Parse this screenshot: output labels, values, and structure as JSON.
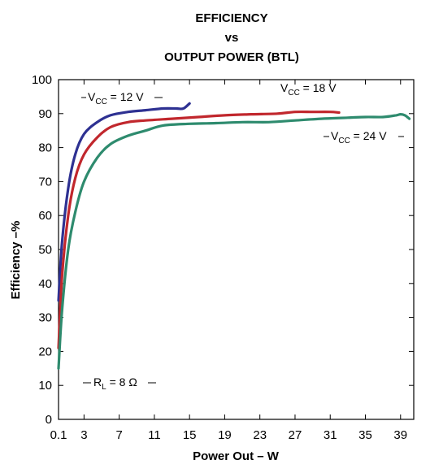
{
  "chart_data": {
    "type": "line",
    "title_lines": [
      "EFFICIENCY",
      "vs",
      "OUTPUT POWER (BTL)"
    ],
    "xlabel": "Power Out – W",
    "ylabel": "Efficiency –%",
    "xlim": [
      0.1,
      40.5
    ],
    "ylim": [
      0,
      100
    ],
    "x_ticks": [
      0.1,
      3,
      7,
      11,
      15,
      19,
      23,
      27,
      31,
      35,
      39
    ],
    "x_tick_labels": [
      "0.1",
      "3",
      "7",
      "11",
      "15",
      "19",
      "23",
      "27",
      "31",
      "35",
      "39"
    ],
    "y_ticks": [
      0,
      10,
      20,
      30,
      40,
      50,
      60,
      70,
      80,
      90,
      100
    ],
    "y_tick_labels": [
      "0",
      "10",
      "20",
      "30",
      "40",
      "50",
      "60",
      "70",
      "80",
      "90",
      "100"
    ],
    "grid": false,
    "series": [
      {
        "color": "#2e3192",
        "x": [
          0.1,
          0.5,
          1.2,
          2.0,
          3.0,
          4.5,
          6.0,
          8.0,
          10.0,
          12.0,
          13.5,
          14.3,
          15.0
        ],
        "y": [
          35,
          52,
          68,
          78,
          84,
          87.5,
          89.5,
          90.5,
          91,
          91.5,
          91.5,
          91.5,
          93
        ]
      },
      {
        "color": "#c1272d",
        "x": [
          0.1,
          0.5,
          1.2,
          2.0,
          3.0,
          4.5,
          6.0,
          8.0,
          10.0,
          13.0,
          16.0,
          19.0,
          22.0,
          25.0,
          27.0,
          29.0,
          31.0,
          32.0
        ],
        "y": [
          21,
          42,
          60,
          71,
          78,
          83,
          86,
          87.5,
          88,
          88.5,
          89,
          89.5,
          89.8,
          90,
          90.5,
          90.5,
          90.5,
          90.3
        ]
      },
      {
        "color": "#2e8b6e",
        "x": [
          0.1,
          0.5,
          1.2,
          2.0,
          3.0,
          4.5,
          6.0,
          8.0,
          10.0,
          12.0,
          15.0,
          18.0,
          21.0,
          24.0,
          27.0,
          30.0,
          33.0,
          35.0,
          37.0,
          38.5,
          39.0,
          39.5,
          40.0
        ],
        "y": [
          15,
          32,
          50,
          61,
          70,
          77,
          81,
          83.5,
          85,
          86.5,
          87,
          87.2,
          87.5,
          87.5,
          88,
          88.5,
          88.8,
          89,
          89,
          89.5,
          89.8,
          89.5,
          88.5
        ]
      }
    ],
    "annotations": [
      {
        "main": "V",
        "sub": "CC",
        "rest": " = 12 V"
      },
      {
        "main": "V",
        "sub": "CC",
        "rest": " = 18 V"
      },
      {
        "main": "V",
        "sub": "CC",
        "rest": " = 24 V"
      },
      {
        "main": "R",
        "sub": "L",
        "rest": " = 8 Ω"
      }
    ]
  }
}
